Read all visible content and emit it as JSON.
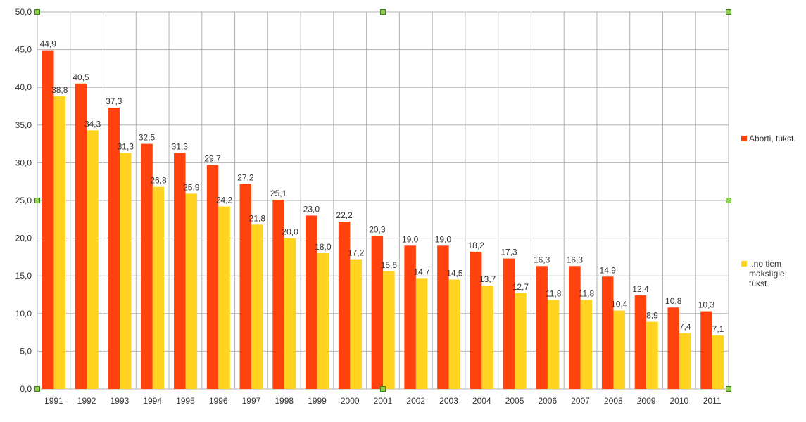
{
  "chart_data": {
    "type": "bar",
    "title": "",
    "xlabel": "",
    "ylabel": "",
    "ylim": [
      0,
      50
    ],
    "yticks": [
      "0,0",
      "5,0",
      "10,0",
      "15,0",
      "20,0",
      "25,0",
      "30,0",
      "35,0",
      "40,0",
      "45,0",
      "50,0"
    ],
    "grid": true,
    "legend_position": "right",
    "categories": [
      "1991",
      "1992",
      "1993",
      "1994",
      "1995",
      "1996",
      "1997",
      "1998",
      "1999",
      "2000",
      "2001",
      "2002",
      "2003",
      "2004",
      "2005",
      "2006",
      "2007",
      "2008",
      "2009",
      "2010",
      "2011"
    ],
    "series": [
      {
        "name": "Aborti, tūkst.",
        "color": "#ff420e",
        "values": [
          44.9,
          40.5,
          37.3,
          32.5,
          31.3,
          29.7,
          27.2,
          25.1,
          23.0,
          22.2,
          20.3,
          19.0,
          19.0,
          18.2,
          17.3,
          16.3,
          16.3,
          14.9,
          12.4,
          10.8,
          10.3
        ]
      },
      {
        "name": "..no tiem mākslīgie, tūkst.",
        "color": "#ffd320",
        "values": [
          38.8,
          34.3,
          31.3,
          26.8,
          25.9,
          24.2,
          21.8,
          20.0,
          18.0,
          17.2,
          15.6,
          14.7,
          14.5,
          13.7,
          12.7,
          11.8,
          11.8,
          10.4,
          8.9,
          7.4,
          7.1
        ]
      }
    ]
  }
}
